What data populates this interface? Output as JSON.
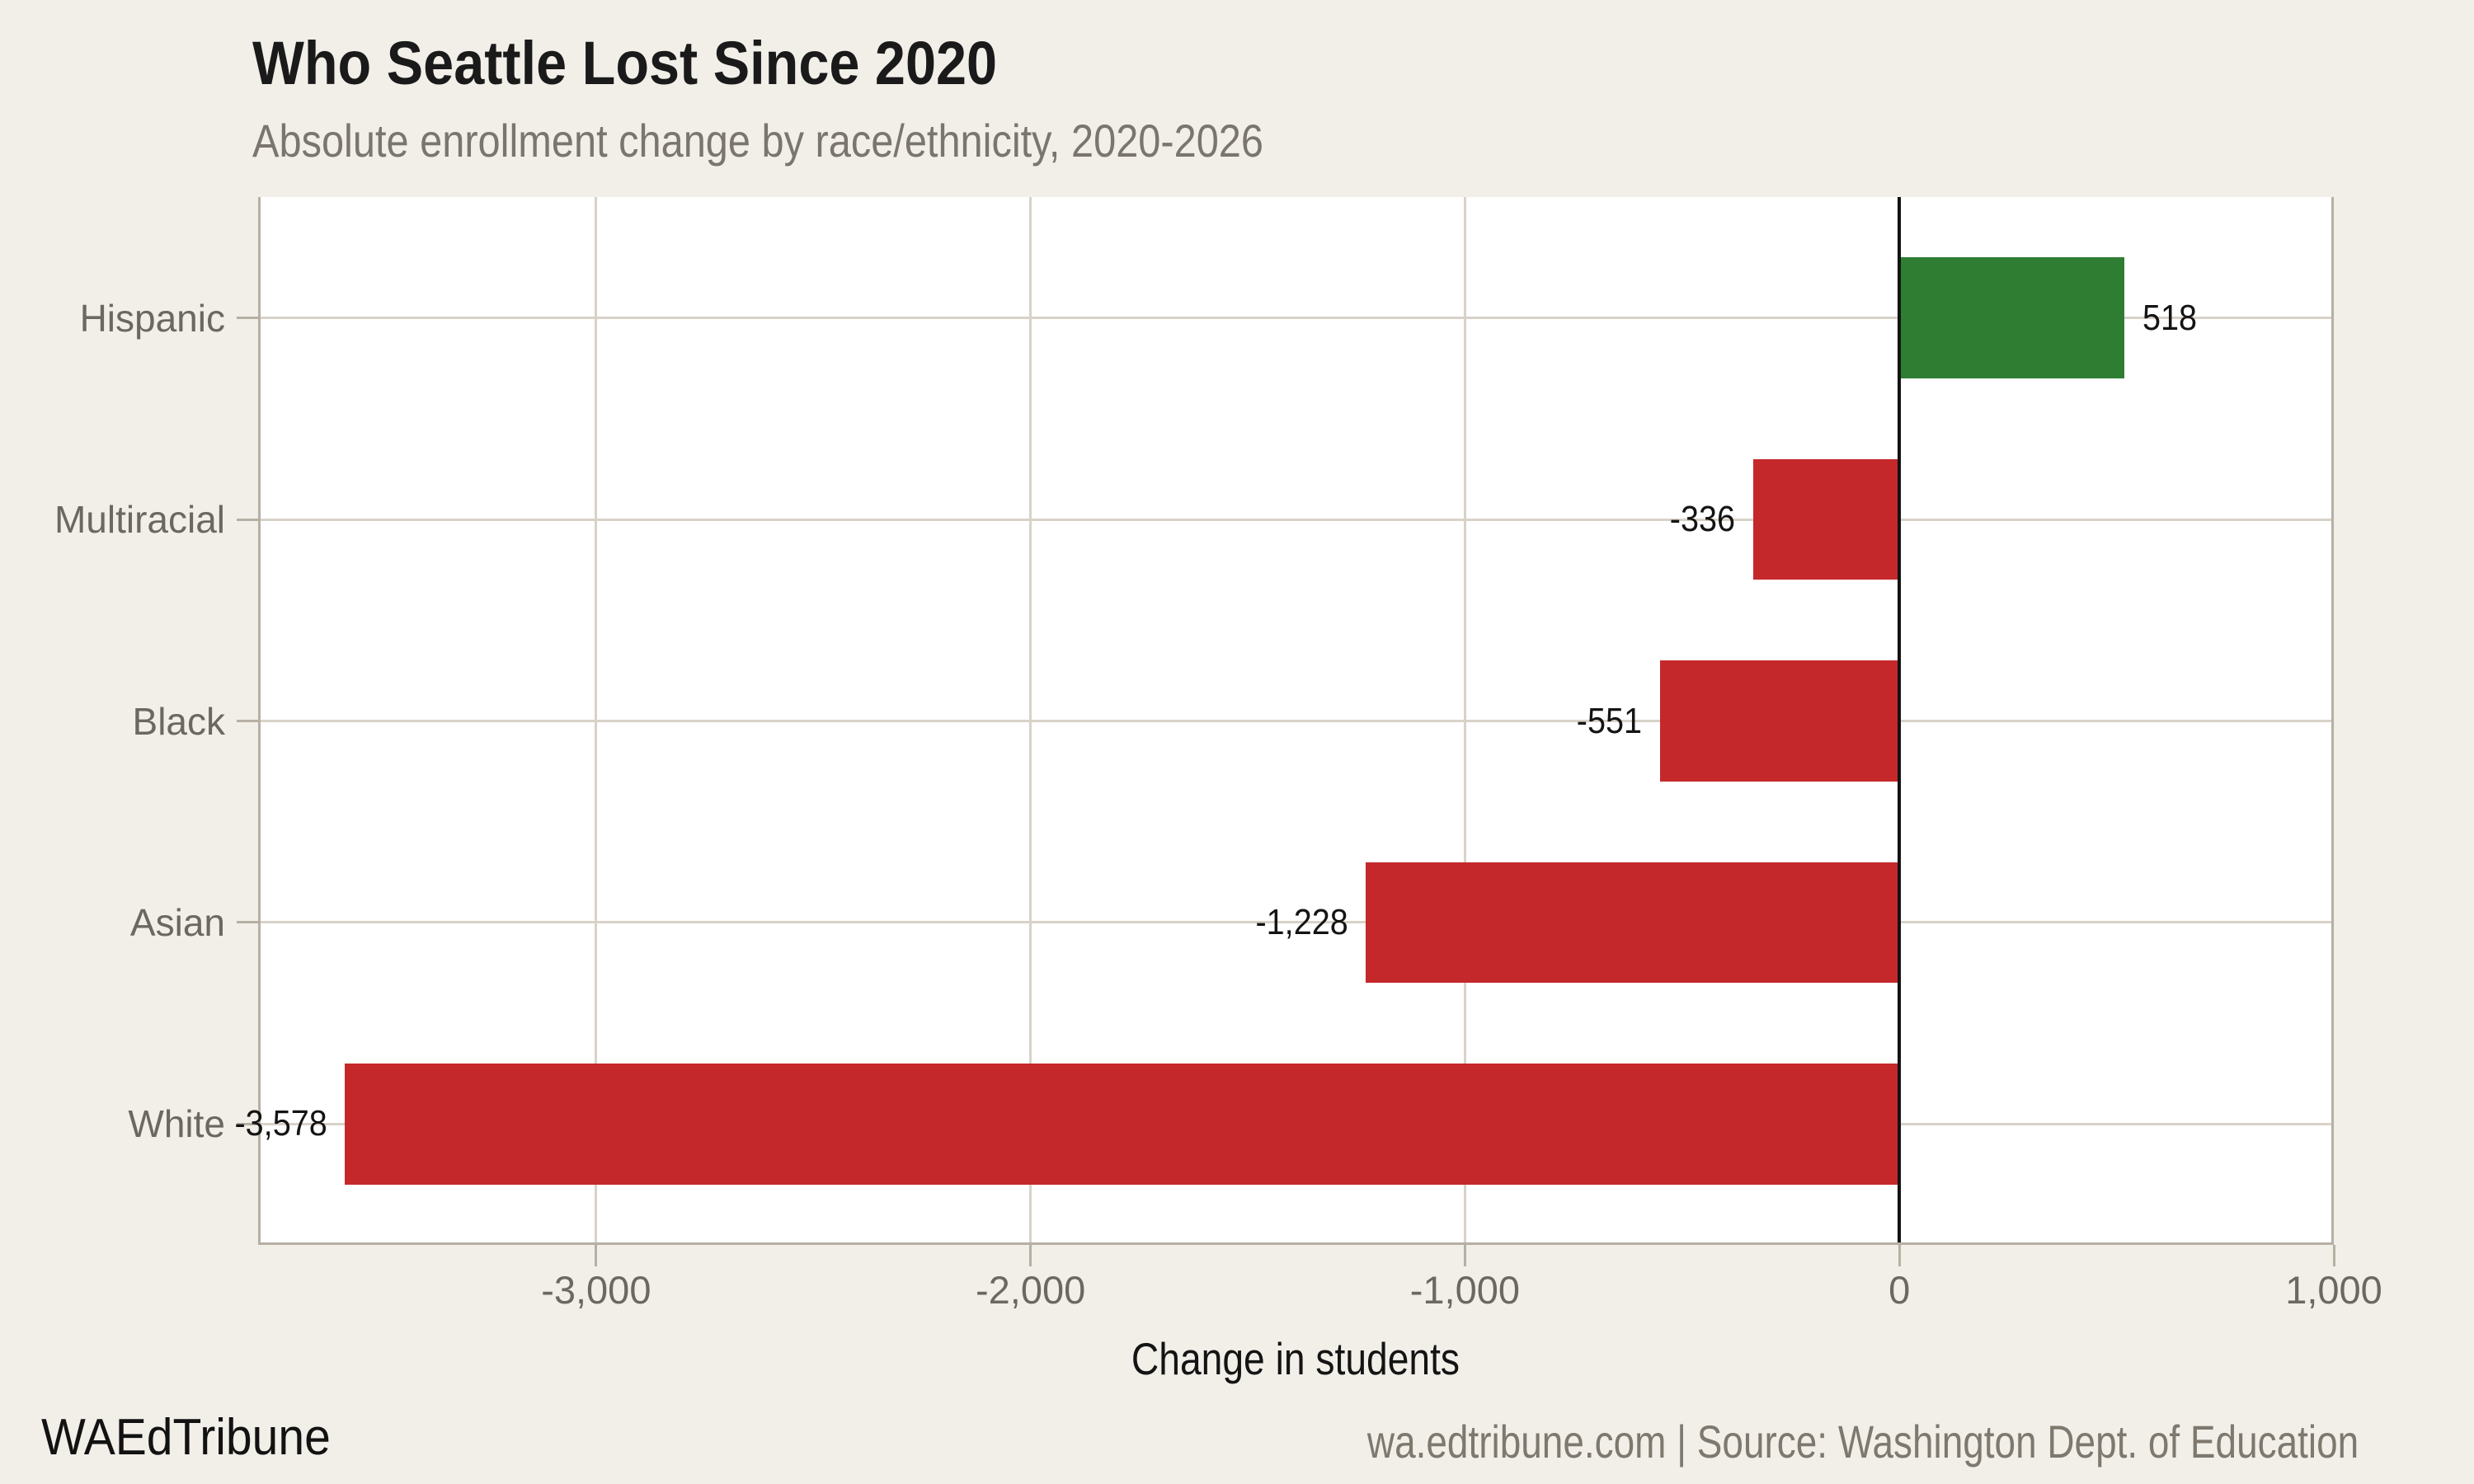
{
  "chart_data": {
    "type": "bar",
    "orientation": "horizontal",
    "title": "Who Seattle Lost Since 2020",
    "subtitle": "Absolute enrollment change by race/ethnicity, 2020-2026",
    "xlabel": "Change in students",
    "categories": [
      "Hispanic",
      "Multiracial",
      "Black",
      "Asian",
      "White"
    ],
    "values": [
      518,
      -336,
      -551,
      -1228,
      -3578
    ],
    "value_labels": [
      "518",
      "-336",
      "-551",
      "-1,228",
      "-3,578"
    ],
    "x_ticks": [
      {
        "value": -3000,
        "label": "-3,000"
      },
      {
        "value": -2000,
        "label": "-2,000"
      },
      {
        "value": -1000,
        "label": "-1,000"
      },
      {
        "value": 0,
        "label": "0"
      },
      {
        "value": 1000,
        "label": "1,000"
      }
    ],
    "xlim": [
      -3778,
      1000
    ],
    "grid": true,
    "legend": null,
    "colors": {
      "positive": "#2e7d33",
      "negative": "#c5282b",
      "zero_line": "#131313",
      "gridline": "#d8d2c8",
      "spine": "#b6b0a4",
      "plot_bg": "#ffffff",
      "page_bg": "#f2efe9",
      "title_text": "#1a1a1a",
      "subtitle_text": "#7a756e",
      "tick_text": "#6b6761",
      "label_text": "#141414"
    }
  },
  "footer": {
    "brand": "WAEdTribune",
    "source": "wa.edtribune.com | Source: Washington Dept. of Education"
  }
}
